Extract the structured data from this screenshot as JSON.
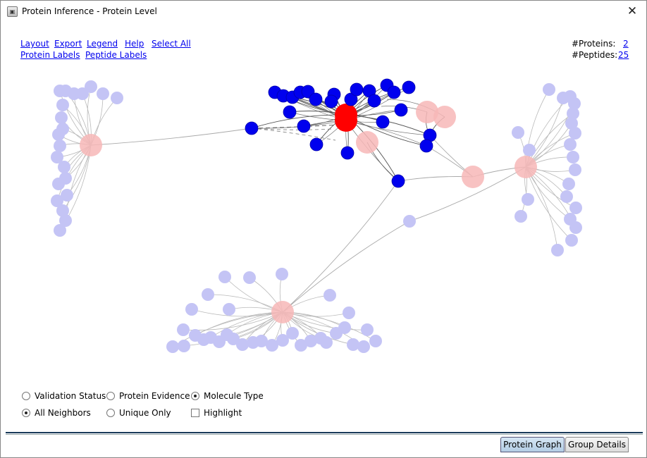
{
  "window": {
    "title": "Protein Inference - Protein Level",
    "close_symbol": "✕"
  },
  "menu": {
    "row1": [
      "Layout",
      "Export",
      "Legend",
      "Help",
      "Select All"
    ],
    "row2": [
      "Protein Labels",
      "Peptide Labels"
    ]
  },
  "stats": {
    "proteins_label": "#Proteins:",
    "proteins_value": "2",
    "peptides_label": "#Peptides:",
    "peptides_value": "25"
  },
  "options": {
    "color_by": [
      {
        "label": "Validation Status",
        "checked": false
      },
      {
        "label": "Protein Evidence",
        "checked": false
      },
      {
        "label": "Molecule Type",
        "checked": true
      }
    ],
    "neighbors": [
      {
        "label": "All Neighbors",
        "checked": true
      },
      {
        "label": "Unique Only",
        "checked": false
      }
    ],
    "highlight": {
      "label": "Highlight",
      "checked": false
    }
  },
  "tabs": [
    {
      "label": "Protein Graph",
      "active": true
    },
    {
      "label": "Group Details",
      "active": false
    }
  ],
  "colors": {
    "selected_protein": "#ff0000",
    "selected_peptide": "#0000ee",
    "other_protein": "#f7b7b7",
    "other_peptide": "#c4c4f5",
    "link": "#0000ee"
  }
}
